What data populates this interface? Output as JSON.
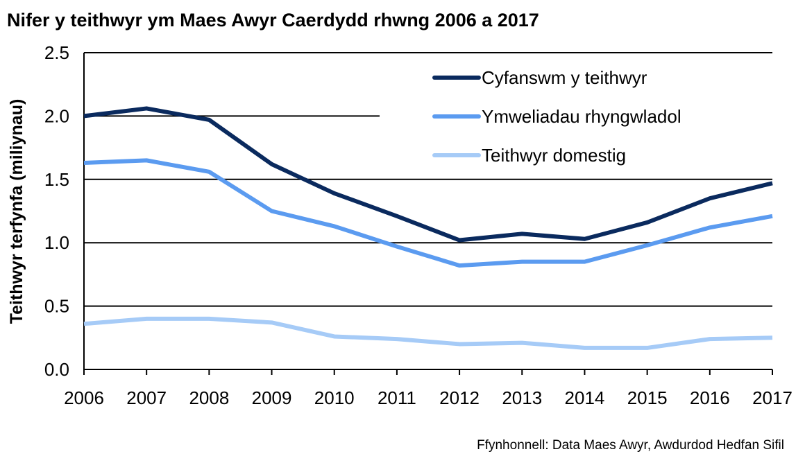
{
  "chart_data": {
    "type": "line",
    "title": "Nifer y teithwyr ym Maes Awyr Caerdydd rhwng 2006 a 2017",
    "ylabel": "Teithwyr terfynfa (miliynau)",
    "xlabel": "",
    "source": "Ffynhonnell: Data Maes Awyr, Awdurdod Hedfan Sifil",
    "x": [
      "2006",
      "2007",
      "2008",
      "2009",
      "2010",
      "2011",
      "2012",
      "2013",
      "2014",
      "2015",
      "2016",
      "2017"
    ],
    "ylim": [
      0,
      2.5
    ],
    "yticks": [
      "0.0",
      "0.5",
      "1.0",
      "1.5",
      "2.0",
      "2.5"
    ],
    "grid": true,
    "legend_position": "top-right",
    "series": [
      {
        "name": "Cyfanswm y teithwyr",
        "color": "#0a2a5e",
        "values": [
          2.0,
          2.06,
          1.97,
          1.62,
          1.39,
          1.21,
          1.02,
          1.07,
          1.03,
          1.16,
          1.35,
          1.47
        ]
      },
      {
        "name": "Ymweliadau rhyngwladol",
        "color": "#5b9bf0",
        "values": [
          1.63,
          1.65,
          1.56,
          1.25,
          1.13,
          0.97,
          0.82,
          0.85,
          0.85,
          0.98,
          1.12,
          1.21
        ]
      },
      {
        "name": "Teithwyr domestig",
        "color": "#a6cbf7",
        "values": [
          0.36,
          0.4,
          0.4,
          0.37,
          0.26,
          0.24,
          0.2,
          0.21,
          0.17,
          0.17,
          0.24,
          0.25
        ]
      }
    ]
  }
}
